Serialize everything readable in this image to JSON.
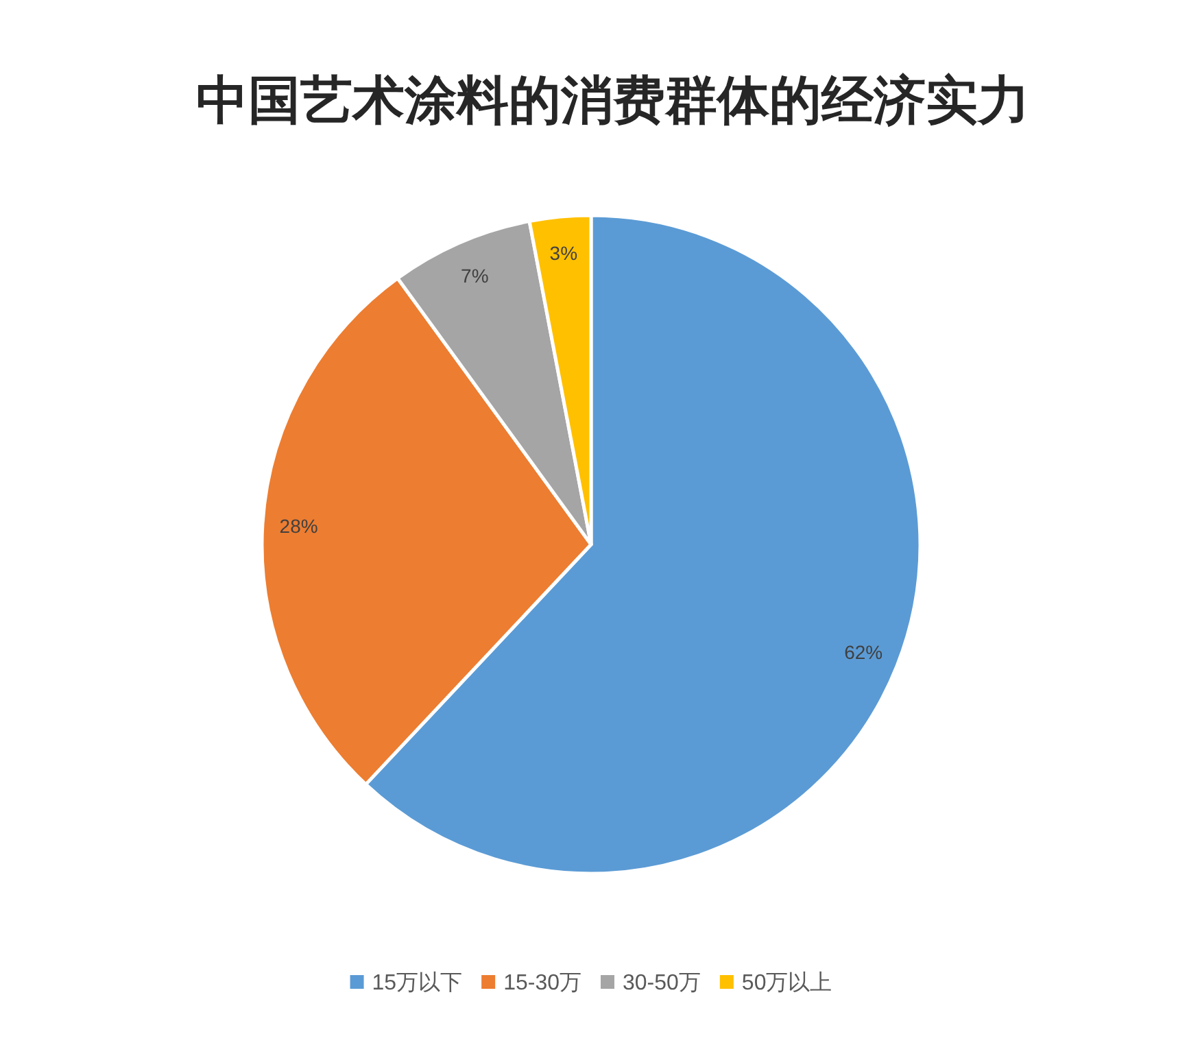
{
  "chart_data": {
    "type": "pie",
    "title": "中国艺术涂料的消费群体的经济实力",
    "categories": [
      "15万以下",
      "15-30万",
      "30-50万",
      "50万以上"
    ],
    "values": [
      62,
      28,
      7,
      3
    ],
    "colors": [
      "#5b9bd5",
      "#ed7d31",
      "#a5a5a5",
      "#ffc000"
    ],
    "value_labels": [
      "62%",
      "28%",
      "7%",
      "3%"
    ],
    "legend": "bottom"
  }
}
